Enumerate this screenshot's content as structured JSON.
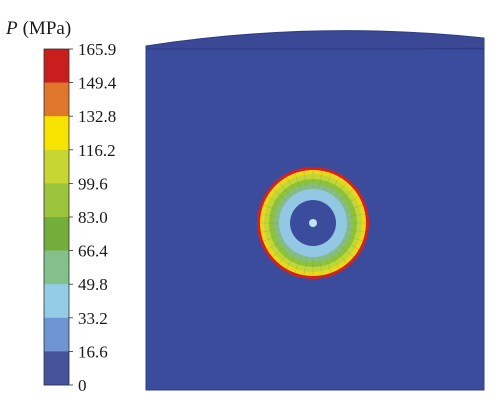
{
  "legend": {
    "symbol": "P",
    "unit": "(MPa)",
    "ticks": [
      "165.9",
      "149.4",
      "132.8",
      "116.2",
      "99.6",
      "83.0",
      "66.4",
      "49.8",
      "33.2",
      "16.6",
      "0"
    ],
    "band_colors_top_to_bottom": [
      "#c81e1e",
      "#e0762a",
      "#f6e400",
      "#c8d632",
      "#9cc43c",
      "#74ae3a",
      "#84c08a",
      "#94cce8",
      "#6e94d2",
      "#46529a"
    ]
  },
  "model": {
    "body_color": "#3c4c9c",
    "top_face_color": "#3a4896",
    "edge_color": "#2e3c84"
  },
  "contact_zone": {
    "outer_ring_color": "#d62020",
    "ring_colors_outer_to_inner": [
      "#ecd81a",
      "#c2d636",
      "#8cc23c",
      "#86bc86",
      "#92c8e4"
    ],
    "core_color": "#3c4c9c",
    "center_dot_color": "#bfe4f6"
  }
}
